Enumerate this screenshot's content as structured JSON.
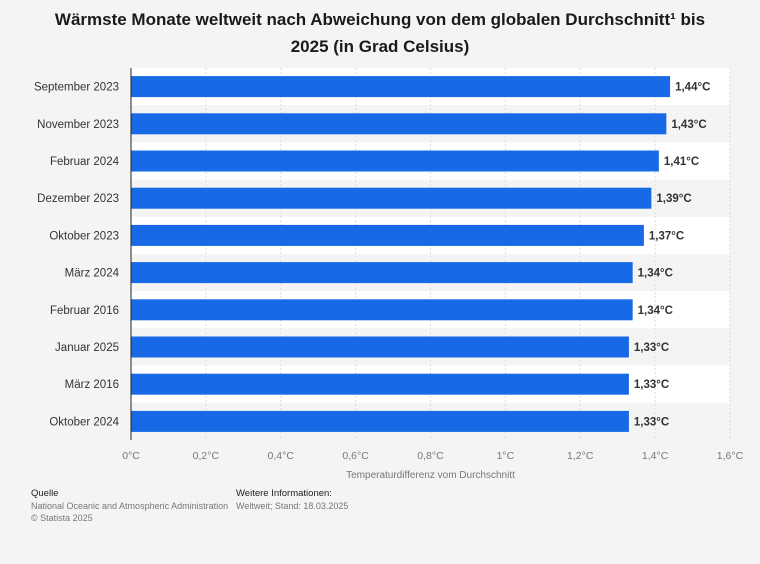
{
  "title": "Wärmste Monate weltweit nach Abweichung von dem globalen Durchschnitt¹ bis 2025 (in Grad Celsius)",
  "chart_data": {
    "type": "bar",
    "orientation": "horizontal",
    "categories": [
      "September 2023",
      "November 2023",
      "Februar 2024",
      "Dezember 2023",
      "Oktober 2023",
      "März 2024",
      "Februar 2016",
      "Januar 2025",
      "März 2016",
      "Oktober 2024"
    ],
    "values": [
      1.44,
      1.43,
      1.41,
      1.39,
      1.37,
      1.34,
      1.34,
      1.33,
      1.33,
      1.33
    ],
    "value_labels": [
      "1,44°C",
      "1,43°C",
      "1,41°C",
      "1,39°C",
      "1,37°C",
      "1,34°C",
      "1,34°C",
      "1,33°C",
      "1,33°C",
      "1,33°C"
    ],
    "xlim": [
      0,
      1.6
    ],
    "xticks": [
      0,
      0.2,
      0.4,
      0.6,
      0.8,
      1.0,
      1.2,
      1.4,
      1.6
    ],
    "xtick_labels": [
      "0°C",
      "0,2°C",
      "0,4°C",
      "0,6°C",
      "0,8°C",
      "1°C",
      "1,2°C",
      "1,4°C",
      "1,6°C"
    ],
    "xlabel": "Temperaturdifferenz vom Durchschnitt",
    "ylabel": "",
    "grid": true,
    "bar_color": "#1769e6"
  },
  "footer": {
    "source_heading": "Quelle",
    "source_text": "National Oceanic and Atmospheric Administration",
    "copyright": "© Statista 2025",
    "info_heading": "Weitere Informationen:",
    "info_text": "Weltweit; Stand: 18.03.2025"
  }
}
